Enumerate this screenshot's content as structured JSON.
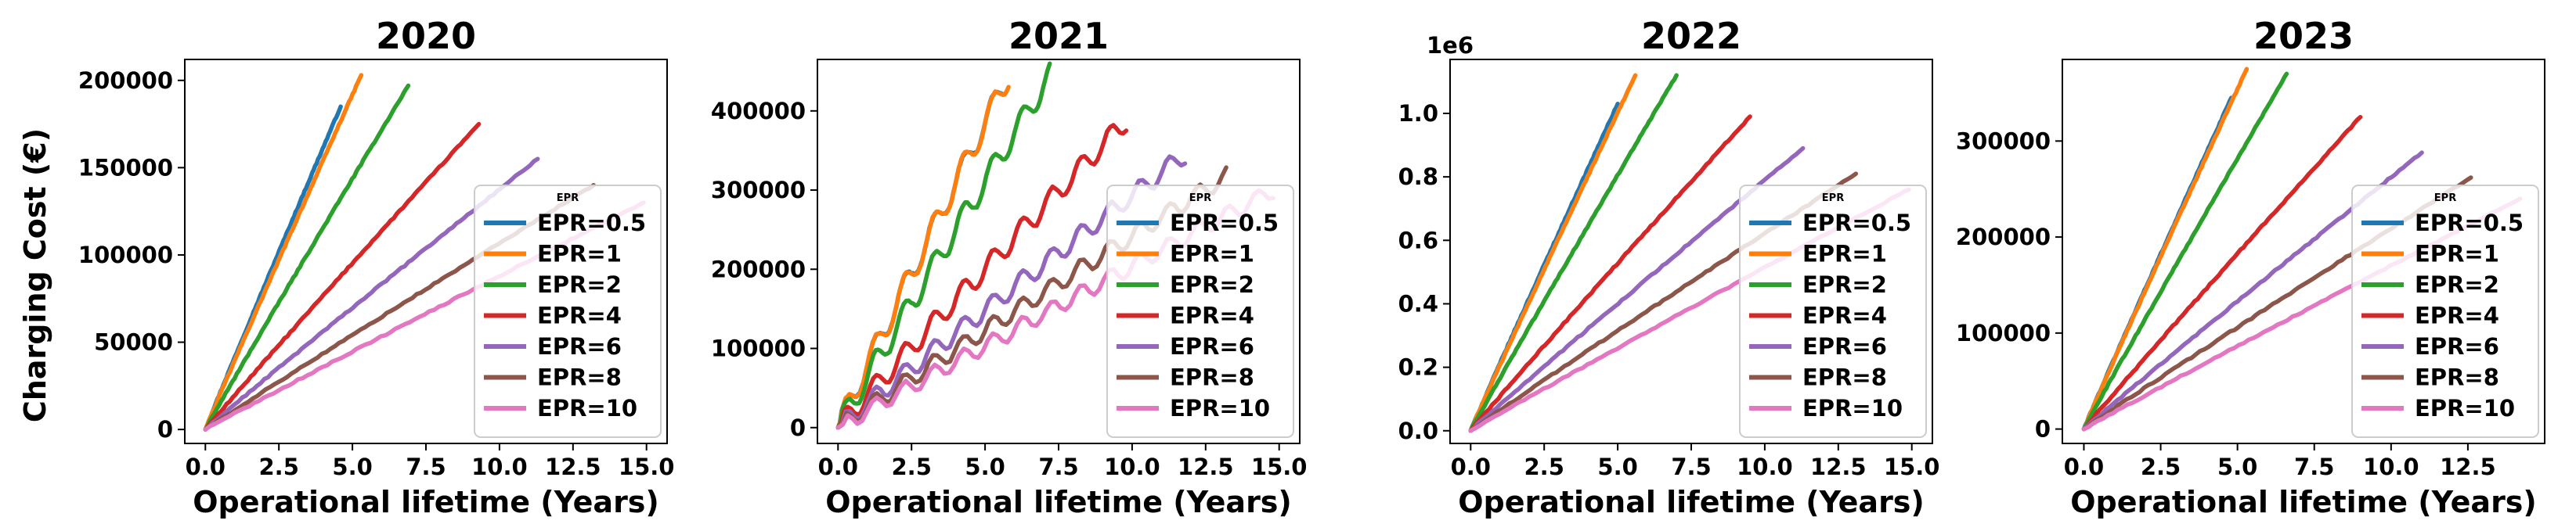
{
  "figure": {
    "ylabel": "Charging Cost (€)",
    "xlabel": "Operational lifetime (Years)"
  },
  "legend_title": "EPR",
  "colors": [
    "#1f77b4",
    "#ff7f0e",
    "#2ca02c",
    "#d62728",
    "#9467bd",
    "#8c564b",
    "#e377c2"
  ],
  "chart_data": [
    {
      "type": "line",
      "title": "2020",
      "xlabel": "Operational lifetime (Years)",
      "ylabel": "Charging Cost (€)",
      "xlim": [
        -0.7,
        15.7
      ],
      "ylim": [
        -8000,
        212000
      ],
      "xticks": [
        0.0,
        2.5,
        5.0,
        7.5,
        10.0,
        12.5,
        15.0
      ],
      "xtick_labels": [
        "0.0",
        "2.5",
        "5.0",
        "7.5",
        "10.0",
        "12.5",
        "15.0"
      ],
      "yticks": [
        0,
        50000,
        100000,
        150000,
        200000
      ],
      "ytick_labels": [
        "0",
        "50000",
        "100000",
        "150000",
        "200000"
      ],
      "offset_label": "",
      "legend_loc": "lower right",
      "series": [
        {
          "name": "EPR=0.5",
          "x_end": 4.6,
          "y_end": 185000
        },
        {
          "name": "EPR=1",
          "x_end": 5.3,
          "y_end": 203000
        },
        {
          "name": "EPR=2",
          "x_end": 6.9,
          "y_end": 197000
        },
        {
          "name": "EPR=4",
          "x_end": 9.3,
          "y_end": 175000
        },
        {
          "name": "EPR=6",
          "x_end": 11.3,
          "y_end": 155000
        },
        {
          "name": "EPR=8",
          "x_end": 13.2,
          "y_end": 140000
        },
        {
          "name": "EPR=10",
          "x_end": 14.9,
          "y_end": 130000
        }
      ]
    },
    {
      "type": "line",
      "title": "2021",
      "xlabel": "Operational lifetime (Years)",
      "ylabel": "",
      "xlim": [
        -0.7,
        15.7
      ],
      "ylim": [
        -20000,
        465000
      ],
      "xticks": [
        0.0,
        2.5,
        5.0,
        7.5,
        10.0,
        12.5,
        15.0
      ],
      "xtick_labels": [
        "0.0",
        "2.5",
        "5.0",
        "7.5",
        "10.0",
        "12.5",
        "15.0"
      ],
      "yticks": [
        0,
        100000,
        200000,
        300000,
        400000
      ],
      "ytick_labels": [
        "0",
        "100000",
        "200000",
        "300000",
        "400000"
      ],
      "offset_label": "",
      "legend_loc": "lower right",
      "series": [
        {
          "name": "EPR=0.5",
          "x_end": 5.6,
          "y_end": 430000
        },
        {
          "name": "EPR=1",
          "x_end": 5.8,
          "y_end": 445000
        },
        {
          "name": "EPR=2",
          "x_end": 7.2,
          "y_end": 445000
        },
        {
          "name": "EPR=4",
          "x_end": 9.8,
          "y_end": 388000
        },
        {
          "name": "EPR=6",
          "x_end": 11.8,
          "y_end": 345000
        },
        {
          "name": "EPR=8",
          "x_end": 13.2,
          "y_end": 318000
        },
        {
          "name": "EPR=10",
          "x_end": 14.8,
          "y_end": 300000
        }
      ]
    },
    {
      "type": "line",
      "title": "2022",
      "xlabel": "Operational lifetime (Years)",
      "ylabel": "",
      "xlim": [
        -0.7,
        15.7
      ],
      "ylim": [
        -0.04,
        1.17
      ],
      "xticks": [
        0.0,
        2.5,
        5.0,
        7.5,
        10.0,
        12.5,
        15.0
      ],
      "xtick_labels": [
        "0.0",
        "2.5",
        "5.0",
        "7.5",
        "10.0",
        "12.5",
        "15.0"
      ],
      "yticks": [
        0.0,
        0.2,
        0.4,
        0.6,
        0.8,
        1.0
      ],
      "ytick_labels": [
        "0.0",
        "0.2",
        "0.4",
        "0.6",
        "0.8",
        "1.0"
      ],
      "offset_label": "1e6",
      "legend_loc": "lower right",
      "series": [
        {
          "name": "EPR=0.5",
          "x_end": 5.0,
          "y_end": 1.03
        },
        {
          "name": "EPR=1",
          "x_end": 5.6,
          "y_end": 1.12
        },
        {
          "name": "EPR=2",
          "x_end": 7.0,
          "y_end": 1.12
        },
        {
          "name": "EPR=4",
          "x_end": 9.5,
          "y_end": 0.99
        },
        {
          "name": "EPR=6",
          "x_end": 11.3,
          "y_end": 0.89
        },
        {
          "name": "EPR=8",
          "x_end": 13.1,
          "y_end": 0.81
        },
        {
          "name": "EPR=10",
          "x_end": 14.9,
          "y_end": 0.76
        }
      ]
    },
    {
      "type": "line",
      "title": "2023",
      "xlabel": "Operational lifetime (Years)",
      "ylabel": "",
      "xlim": [
        -0.7,
        15.0
      ],
      "ylim": [
        -15000,
        385000
      ],
      "xticks": [
        0.0,
        2.5,
        5.0,
        7.5,
        10.0,
        12.5
      ],
      "xtick_labels": [
        "0.0",
        "2.5",
        "5.0",
        "7.5",
        "10.0",
        "12.5"
      ],
      "yticks": [
        0,
        100000,
        200000,
        300000
      ],
      "ytick_labels": [
        "0",
        "100000",
        "200000",
        "300000"
      ],
      "offset_label": "",
      "legend_loc": "lower right",
      "series": [
        {
          "name": "EPR=0.5",
          "x_end": 4.8,
          "y_end": 345000
        },
        {
          "name": "EPR=1",
          "x_end": 5.3,
          "y_end": 375000
        },
        {
          "name": "EPR=2",
          "x_end": 6.6,
          "y_end": 370000
        },
        {
          "name": "EPR=4",
          "x_end": 9.0,
          "y_end": 325000
        },
        {
          "name": "EPR=6",
          "x_end": 11.0,
          "y_end": 288000
        },
        {
          "name": "EPR=8",
          "x_end": 12.6,
          "y_end": 262000
        },
        {
          "name": "EPR=10",
          "x_end": 14.2,
          "y_end": 240000
        }
      ]
    }
  ]
}
